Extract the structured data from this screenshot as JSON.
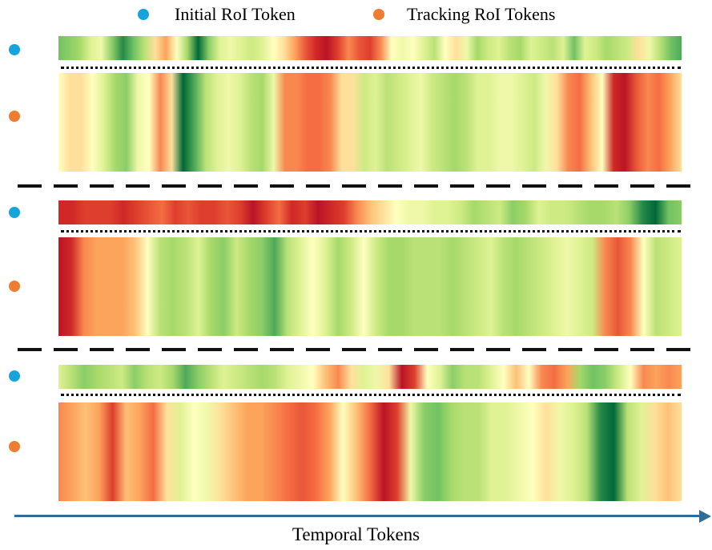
{
  "legend": {
    "initial_label": "Initial RoI Token",
    "tracking_label": "Tracking RoI Tokens",
    "initial_color": "#17a3dc",
    "tracking_color": "#ed7d31"
  },
  "colormap": "RdYlGn",
  "axis": {
    "label": "Temporal Tokens",
    "color": "#2d6d99"
  },
  "groups": [
    {
      "initial": [
        0.85,
        0.8,
        0.75,
        0.6,
        0.55,
        0.8,
        0.95,
        0.85,
        0.7,
        0.45,
        0.35,
        0.5,
        0.75,
        1.0,
        0.8,
        0.6,
        0.55,
        0.6,
        0.65,
        0.6,
        0.5,
        0.45,
        0.35,
        0.2,
        0.1,
        0.05,
        0.15,
        0.3,
        0.2,
        0.15,
        0.3,
        0.5,
        0.55,
        0.5,
        0.6,
        0.7,
        0.5,
        0.45,
        0.55,
        0.75,
        0.65,
        0.6,
        0.7,
        0.75,
        0.6,
        0.65,
        0.7,
        0.6,
        0.85,
        0.6,
        0.65,
        0.75,
        0.7,
        0.65,
        0.45,
        0.55,
        0.7,
        0.85,
        0.9
      ],
      "tracking": [
        0.5,
        0.45,
        0.45,
        0.5,
        0.6,
        0.75,
        0.8,
        0.55,
        0.5,
        0.3,
        0.45,
        1.0,
        0.9,
        0.7,
        0.6,
        0.55,
        0.6,
        0.7,
        0.75,
        0.55,
        0.3,
        0.3,
        0.25,
        0.25,
        0.3,
        0.45,
        0.45,
        0.65,
        0.6,
        0.7,
        0.65,
        0.6,
        0.55,
        0.65,
        0.7,
        0.75,
        0.7,
        0.6,
        0.6,
        0.55,
        0.55,
        0.6,
        0.65,
        0.55,
        0.45,
        0.3,
        0.25,
        0.4,
        0.5,
        0.1,
        0.05,
        0.2,
        0.3,
        0.25,
        0.35,
        0.45
      ]
    },
    {
      "initial": [
        0.1,
        0.1,
        0.15,
        0.15,
        0.15,
        0.1,
        0.15,
        0.2,
        0.25,
        0.15,
        0.2,
        0.15,
        0.15,
        0.2,
        0.15,
        0.05,
        0.15,
        0.25,
        0.1,
        0.15,
        0.05,
        0.1,
        0.15,
        0.3,
        0.4,
        0.45,
        0.5,
        0.55,
        0.55,
        0.6,
        0.6,
        0.65,
        0.75,
        0.7,
        0.65,
        0.8,
        0.75,
        0.6,
        0.65,
        0.65,
        0.7,
        0.75,
        0.75,
        0.7,
        0.8,
        0.95,
        1.0,
        0.85,
        0.8
      ],
      "tracking": [
        0.05,
        0.1,
        0.3,
        0.35,
        0.35,
        0.35,
        0.4,
        0.5,
        0.7,
        0.75,
        0.7,
        0.6,
        0.75,
        0.8,
        0.65,
        0.75,
        0.8,
        0.9,
        0.7,
        0.6,
        0.5,
        0.6,
        0.75,
        0.65,
        0.5,
        0.65,
        0.75,
        0.75,
        0.7,
        0.7,
        0.7,
        0.75,
        0.7,
        0.65,
        0.6,
        0.7,
        0.75,
        0.7,
        0.65,
        0.6,
        0.55,
        0.6,
        0.65,
        0.3,
        0.2,
        0.3,
        0.5,
        0.7,
        0.65,
        0.6
      ]
    },
    {
      "initial": [
        0.6,
        0.7,
        0.8,
        0.75,
        0.7,
        0.65,
        0.8,
        0.7,
        0.65,
        0.75,
        0.9,
        0.8,
        0.7,
        0.6,
        0.65,
        0.7,
        0.75,
        0.7,
        0.6,
        0.55,
        0.5,
        0.4,
        0.3,
        0.45,
        0.6,
        0.55,
        0.45,
        0.05,
        0.15,
        0.5,
        0.6,
        0.8,
        0.7,
        0.7,
        0.6,
        0.5,
        0.4,
        0.5,
        0.3,
        0.25,
        0.35,
        0.75,
        0.85,
        0.8,
        0.65,
        0.5,
        0.3,
        0.35,
        0.3,
        0.35
      ],
      "tracking": [
        0.3,
        0.35,
        0.4,
        0.35,
        0.15,
        0.4,
        0.35,
        0.25,
        0.45,
        0.6,
        0.5,
        0.55,
        0.45,
        0.4,
        0.35,
        0.35,
        0.3,
        0.25,
        0.2,
        0.25,
        0.35,
        0.5,
        0.4,
        0.25,
        0.05,
        0.15,
        0.55,
        0.8,
        0.85,
        0.75,
        0.7,
        0.7,
        0.6,
        0.6,
        0.55,
        0.5,
        0.45,
        0.55,
        0.6,
        0.7,
        0.95,
        1.0,
        0.7,
        0.6,
        0.45,
        0.4,
        0.45
      ]
    }
  ]
}
